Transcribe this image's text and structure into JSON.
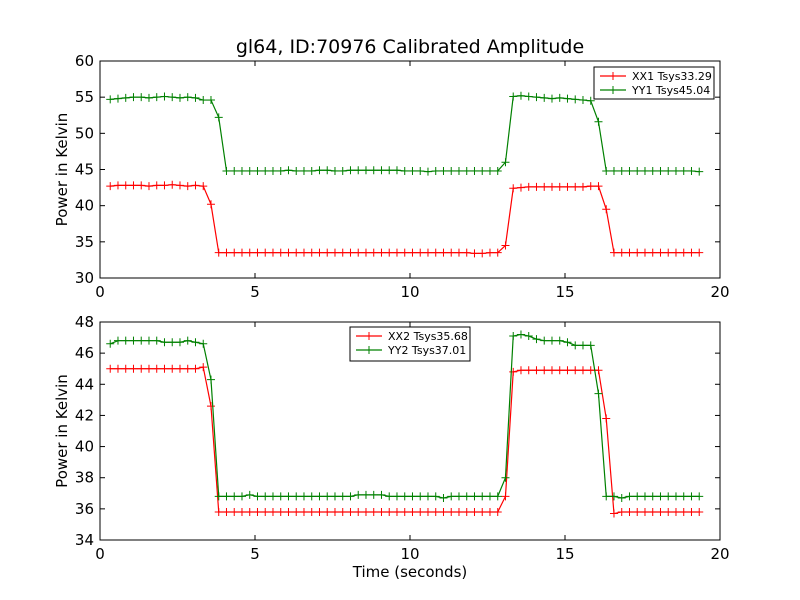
{
  "figure": {
    "title": "gl64, ID:70976 Calibrated Amplitude"
  },
  "chart_data": [
    {
      "type": "line",
      "title": "gl64, ID:70976 Calibrated Amplitude",
      "xlabel": "",
      "ylabel": "Power in Kelvin",
      "xlim": [
        0,
        20
      ],
      "ylim": [
        30,
        60
      ],
      "xticks": [
        0,
        5,
        10,
        15,
        20
      ],
      "yticks": [
        30,
        35,
        40,
        45,
        50,
        55,
        60
      ],
      "grid": false,
      "legend_position": "top-right",
      "series": [
        {
          "name": "XX1 Tsys33.29",
          "color": "#ff0000",
          "marker": "plus",
          "x": [
            0.33,
            0.58,
            0.83,
            1.08,
            1.33,
            1.58,
            1.83,
            2.08,
            2.33,
            2.58,
            2.83,
            3.08,
            3.33,
            3.58,
            3.83,
            4.08,
            4.33,
            4.58,
            4.83,
            5.08,
            5.33,
            5.58,
            5.83,
            6.08,
            6.33,
            6.58,
            6.83,
            7.08,
            7.33,
            7.58,
            7.83,
            8.08,
            8.33,
            8.58,
            8.83,
            9.08,
            9.33,
            9.58,
            9.83,
            10.08,
            10.33,
            10.58,
            10.83,
            11.08,
            11.33,
            11.58,
            11.83,
            12.08,
            12.33,
            12.58,
            12.83,
            13.08,
            13.33,
            13.58,
            13.83,
            14.08,
            14.33,
            14.58,
            14.83,
            15.08,
            15.33,
            15.58,
            15.83,
            16.08,
            16.33,
            16.58,
            16.83,
            17.08,
            17.33,
            17.58,
            17.83,
            18.08,
            18.33,
            18.58,
            18.83,
            19.08,
            19.33
          ],
          "y": [
            42.7,
            42.8,
            42.8,
            42.8,
            42.8,
            42.7,
            42.8,
            42.8,
            42.9,
            42.8,
            42.7,
            42.8,
            42.7,
            40.2,
            33.5,
            33.5,
            33.5,
            33.5,
            33.5,
            33.5,
            33.5,
            33.5,
            33.5,
            33.5,
            33.5,
            33.5,
            33.5,
            33.5,
            33.5,
            33.5,
            33.5,
            33.5,
            33.5,
            33.5,
            33.5,
            33.5,
            33.5,
            33.5,
            33.5,
            33.5,
            33.5,
            33.5,
            33.5,
            33.5,
            33.5,
            33.5,
            33.5,
            33.4,
            33.4,
            33.5,
            33.5,
            34.5,
            42.4,
            42.5,
            42.6,
            42.6,
            42.6,
            42.6,
            42.6,
            42.6,
            42.6,
            42.6,
            42.7,
            42.7,
            39.5,
            33.5,
            33.5,
            33.5,
            33.5,
            33.5,
            33.5,
            33.5,
            33.5,
            33.5,
            33.5,
            33.5,
            33.5
          ]
        },
        {
          "name": "YY1 Tsys45.04",
          "color": "#008000",
          "marker": "plus",
          "x": [
            0.33,
            0.58,
            0.83,
            1.08,
            1.33,
            1.58,
            1.83,
            2.08,
            2.33,
            2.58,
            2.83,
            3.08,
            3.33,
            3.58,
            3.83,
            4.08,
            4.33,
            4.58,
            4.83,
            5.08,
            5.33,
            5.58,
            5.83,
            6.08,
            6.33,
            6.58,
            6.83,
            7.08,
            7.33,
            7.58,
            7.83,
            8.08,
            8.33,
            8.58,
            8.83,
            9.08,
            9.33,
            9.58,
            9.83,
            10.08,
            10.33,
            10.58,
            10.83,
            11.08,
            11.33,
            11.58,
            11.83,
            12.08,
            12.33,
            12.58,
            12.83,
            13.08,
            13.33,
            13.58,
            13.83,
            14.08,
            14.33,
            14.58,
            14.83,
            15.08,
            15.33,
            15.58,
            15.83,
            16.08,
            16.33,
            16.58,
            16.83,
            17.08,
            17.33,
            17.58,
            17.83,
            18.08,
            18.33,
            18.58,
            18.83,
            19.08,
            19.33
          ],
          "y": [
            54.7,
            54.8,
            54.9,
            55.0,
            55.0,
            54.9,
            55.0,
            55.1,
            55.0,
            54.9,
            55.0,
            54.9,
            54.6,
            54.6,
            52.2,
            44.8,
            44.8,
            44.8,
            44.8,
            44.8,
            44.8,
            44.8,
            44.8,
            44.9,
            44.8,
            44.8,
            44.8,
            44.9,
            44.9,
            44.8,
            44.8,
            44.9,
            44.9,
            44.9,
            44.9,
            44.9,
            44.9,
            44.9,
            44.8,
            44.8,
            44.8,
            44.7,
            44.8,
            44.8,
            44.8,
            44.8,
            44.8,
            44.8,
            44.8,
            44.8,
            44.8,
            46.0,
            55.1,
            55.2,
            55.1,
            55.0,
            54.9,
            54.8,
            54.9,
            54.8,
            54.7,
            54.6,
            54.5,
            51.6,
            44.8,
            44.8,
            44.8,
            44.8,
            44.8,
            44.8,
            44.8,
            44.8,
            44.8,
            44.8,
            44.8,
            44.8,
            44.7
          ]
        }
      ]
    },
    {
      "type": "line",
      "title": "",
      "xlabel": "Time (seconds)",
      "ylabel": "Power in Kelvin",
      "xlim": [
        0,
        20
      ],
      "ylim": [
        34,
        48
      ],
      "xticks": [
        0,
        5,
        10,
        15,
        20
      ],
      "yticks": [
        34,
        36,
        38,
        40,
        42,
        44,
        46,
        48
      ],
      "grid": false,
      "legend_position": "top-center",
      "series": [
        {
          "name": "XX2 Tsys35.68",
          "color": "#ff0000",
          "marker": "plus",
          "x": [
            0.33,
            0.58,
            0.83,
            1.08,
            1.33,
            1.58,
            1.83,
            2.08,
            2.33,
            2.58,
            2.83,
            3.08,
            3.33,
            3.58,
            3.83,
            4.08,
            4.33,
            4.58,
            4.83,
            5.08,
            5.33,
            5.58,
            5.83,
            6.08,
            6.33,
            6.58,
            6.83,
            7.08,
            7.33,
            7.58,
            7.83,
            8.08,
            8.33,
            8.58,
            8.83,
            9.08,
            9.33,
            9.58,
            9.83,
            10.08,
            10.33,
            10.58,
            10.83,
            11.08,
            11.33,
            11.58,
            11.83,
            12.08,
            12.33,
            12.58,
            12.83,
            13.08,
            13.33,
            13.58,
            13.83,
            14.08,
            14.33,
            14.58,
            14.83,
            15.08,
            15.33,
            15.58,
            15.83,
            16.08,
            16.33,
            16.58,
            16.83,
            17.08,
            17.33,
            17.58,
            17.83,
            18.08,
            18.33,
            18.58,
            18.83,
            19.08,
            19.33
          ],
          "y": [
            45.0,
            45.0,
            45.0,
            45.0,
            45.0,
            45.0,
            45.0,
            45.0,
            45.0,
            45.0,
            45.0,
            45.0,
            45.1,
            42.6,
            35.8,
            35.8,
            35.8,
            35.8,
            35.8,
            35.8,
            35.8,
            35.8,
            35.8,
            35.8,
            35.8,
            35.8,
            35.8,
            35.8,
            35.8,
            35.8,
            35.8,
            35.8,
            35.8,
            35.8,
            35.8,
            35.8,
            35.8,
            35.8,
            35.8,
            35.8,
            35.8,
            35.8,
            35.8,
            35.8,
            35.8,
            35.8,
            35.8,
            35.8,
            35.8,
            35.8,
            35.8,
            36.8,
            44.8,
            44.9,
            44.9,
            44.9,
            44.9,
            44.9,
            44.9,
            44.9,
            44.9,
            44.9,
            44.9,
            44.9,
            41.8,
            35.7,
            35.8,
            35.8,
            35.8,
            35.8,
            35.8,
            35.8,
            35.8,
            35.8,
            35.8,
            35.8,
            35.8
          ]
        },
        {
          "name": "YY2 Tsys37.01",
          "color": "#008000",
          "marker": "plus",
          "x": [
            0.33,
            0.58,
            0.83,
            1.08,
            1.33,
            1.58,
            1.83,
            2.08,
            2.33,
            2.58,
            2.83,
            3.08,
            3.33,
            3.58,
            3.83,
            4.08,
            4.33,
            4.58,
            4.83,
            5.08,
            5.33,
            5.58,
            5.83,
            6.08,
            6.33,
            6.58,
            6.83,
            7.08,
            7.33,
            7.58,
            7.83,
            8.08,
            8.33,
            8.58,
            8.83,
            9.08,
            9.33,
            9.58,
            9.83,
            10.08,
            10.33,
            10.58,
            10.83,
            11.08,
            11.33,
            11.58,
            11.83,
            12.08,
            12.33,
            12.58,
            12.83,
            13.08,
            13.33,
            13.58,
            13.83,
            14.08,
            14.33,
            14.58,
            14.83,
            15.08,
            15.33,
            15.58,
            15.83,
            16.08,
            16.33,
            16.58,
            16.83,
            17.08,
            17.33,
            17.58,
            17.83,
            18.08,
            18.33,
            18.58,
            18.83,
            19.08,
            19.33
          ],
          "y": [
            46.6,
            46.8,
            46.8,
            46.8,
            46.8,
            46.8,
            46.8,
            46.7,
            46.7,
            46.7,
            46.8,
            46.7,
            46.6,
            44.3,
            36.8,
            36.8,
            36.8,
            36.8,
            36.9,
            36.8,
            36.8,
            36.8,
            36.8,
            36.8,
            36.8,
            36.8,
            36.8,
            36.8,
            36.8,
            36.8,
            36.8,
            36.8,
            36.9,
            36.9,
            36.9,
            36.9,
            36.8,
            36.8,
            36.8,
            36.8,
            36.8,
            36.8,
            36.8,
            36.7,
            36.8,
            36.8,
            36.8,
            36.8,
            36.8,
            36.8,
            36.8,
            38.0,
            47.1,
            47.2,
            47.1,
            46.9,
            46.8,
            46.8,
            46.8,
            46.7,
            46.5,
            46.5,
            46.5,
            43.4,
            36.8,
            36.8,
            36.7,
            36.8,
            36.8,
            36.8,
            36.8,
            36.8,
            36.8,
            36.8,
            36.8,
            36.8,
            36.8
          ]
        }
      ]
    }
  ]
}
